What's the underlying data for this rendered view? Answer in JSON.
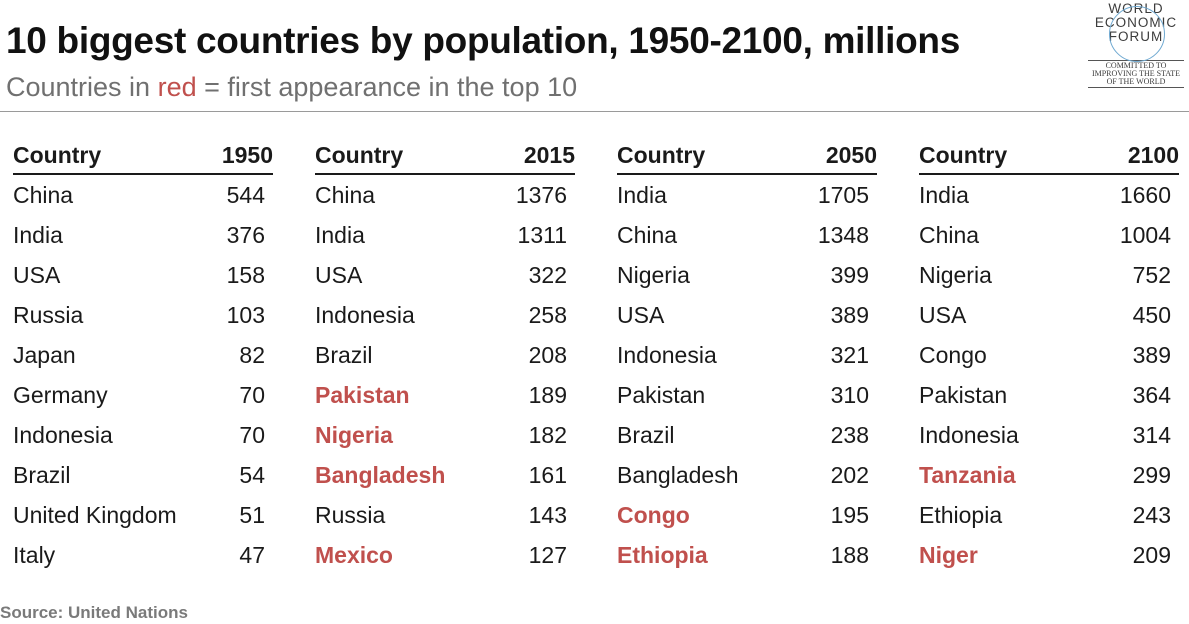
{
  "title": "10 biggest countries by population, 1950-2100, millions",
  "subtitle": {
    "prefix": "Countries in ",
    "highlight": "red",
    "suffix": " = first appearance in the top 10"
  },
  "logo": {
    "lines": [
      "WORLD",
      "ECONOMIC",
      "FORUM"
    ],
    "tagline": [
      "COMMITTED TO",
      "IMPROVING THE STATE",
      "OF THE WORLD"
    ]
  },
  "colors": {
    "first_appearance": "#c0504d",
    "subtitle": "#707070",
    "source": "#7a7a7a"
  },
  "tables": [
    {
      "header": {
        "country": "Country",
        "year": "1950"
      },
      "rows": [
        {
          "country": "China",
          "value": "544",
          "first": false
        },
        {
          "country": "India",
          "value": "376",
          "first": false
        },
        {
          "country": "USA",
          "value": "158",
          "first": false
        },
        {
          "country": "Russia",
          "value": "103",
          "first": false
        },
        {
          "country": "Japan",
          "value": "82",
          "first": false
        },
        {
          "country": "Germany",
          "value": "70",
          "first": false
        },
        {
          "country": "Indonesia",
          "value": "70",
          "first": false
        },
        {
          "country": "Brazil",
          "value": "54",
          "first": false
        },
        {
          "country": "United Kingdom",
          "value": "51",
          "first": false
        },
        {
          "country": "Italy",
          "value": "47",
          "first": false
        }
      ]
    },
    {
      "header": {
        "country": "Country",
        "year": "2015"
      },
      "rows": [
        {
          "country": "China",
          "value": "1376",
          "first": false
        },
        {
          "country": "India",
          "value": "1311",
          "first": false
        },
        {
          "country": "USA",
          "value": "322",
          "first": false
        },
        {
          "country": "Indonesia",
          "value": "258",
          "first": false
        },
        {
          "country": "Brazil",
          "value": "208",
          "first": false
        },
        {
          "country": "Pakistan",
          "value": "189",
          "first": true
        },
        {
          "country": "Nigeria",
          "value": "182",
          "first": true
        },
        {
          "country": "Bangladesh",
          "value": "161",
          "first": true
        },
        {
          "country": "Russia",
          "value": "143",
          "first": false
        },
        {
          "country": "Mexico",
          "value": "127",
          "first": true
        }
      ]
    },
    {
      "header": {
        "country": "Country",
        "year": "2050"
      },
      "rows": [
        {
          "country": "India",
          "value": "1705",
          "first": false
        },
        {
          "country": "China",
          "value": "1348",
          "first": false
        },
        {
          "country": "Nigeria",
          "value": "399",
          "first": false
        },
        {
          "country": "USA",
          "value": "389",
          "first": false
        },
        {
          "country": "Indonesia",
          "value": "321",
          "first": false
        },
        {
          "country": "Pakistan",
          "value": "310",
          "first": false
        },
        {
          "country": "Brazil",
          "value": "238",
          "first": false
        },
        {
          "country": "Bangladesh",
          "value": "202",
          "first": false
        },
        {
          "country": "Congo",
          "value": "195",
          "first": true
        },
        {
          "country": "Ethiopia",
          "value": "188",
          "first": true
        }
      ]
    },
    {
      "header": {
        "country": "Country",
        "year": "2100"
      },
      "rows": [
        {
          "country": "India",
          "value": "1660",
          "first": false
        },
        {
          "country": "China",
          "value": "1004",
          "first": false
        },
        {
          "country": "Nigeria",
          "value": "752",
          "first": false
        },
        {
          "country": "USA",
          "value": "450",
          "first": false
        },
        {
          "country": "Congo",
          "value": "389",
          "first": false
        },
        {
          "country": "Pakistan",
          "value": "364",
          "first": false
        },
        {
          "country": "Indonesia",
          "value": "314",
          "first": false
        },
        {
          "country": "Tanzania",
          "value": "299",
          "first": true
        },
        {
          "country": "Ethiopia",
          "value": "243",
          "first": false
        },
        {
          "country": "Niger",
          "value": "209",
          "first": true
        }
      ]
    }
  ],
  "source": "Source: United Nations"
}
